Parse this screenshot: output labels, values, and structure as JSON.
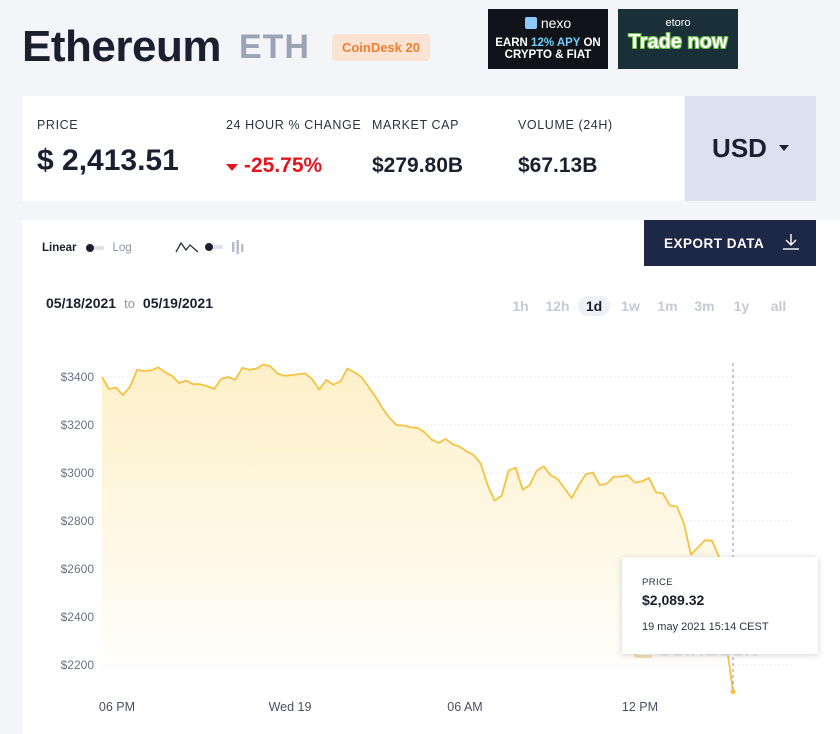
{
  "header": {
    "name": "Ethereum",
    "symbol": "ETH",
    "badge": "CoinDesk 20"
  },
  "ads": {
    "nexo": {
      "brand": "nexo",
      "line1_pre": "EARN ",
      "line1_hl": "12% APY",
      "line1_post": " ON",
      "line2": "CRYPTO & FIAT"
    },
    "etoro": {
      "brand": "etoro",
      "cta": "Trade now"
    }
  },
  "stats": {
    "price_label": "PRICE",
    "price_value": "$ 2,413.51",
    "change_label": "24 HOUR % CHANGE",
    "change_value": "-25.75%",
    "mcap_label": "MARKET CAP",
    "mcap_value": "$279.80B",
    "volume_label": "VOLUME (24H)",
    "volume_value": "$67.13B",
    "currency": "USD"
  },
  "controls": {
    "linear": "Linear",
    "log": "Log",
    "export": "EXPORT DATA",
    "date_from": "05/18/2021",
    "to": "to",
    "date_to": "05/19/2021",
    "periods": [
      "1h",
      "12h",
      "1d",
      "1w",
      "1m",
      "3m",
      "1y",
      "all"
    ],
    "active_period": "1d"
  },
  "tooltip": {
    "label": "PRICE",
    "value": "$2,089.32",
    "time": "19 may 2021 15:14 CEST"
  },
  "watermark": "coindesk",
  "colors": {
    "line": "#f5c242",
    "fill_top": "#fdf0c8",
    "accent_red": "#e1161f",
    "navy": "#1d2746"
  },
  "chart_data": {
    "type": "area",
    "y_ticks": [
      "$3400",
      "$3200",
      "$3000",
      "$2800",
      "$2600",
      "$2400",
      "$2200"
    ],
    "y_tick_values": [
      3400,
      3200,
      3000,
      2800,
      2600,
      2400,
      2200
    ],
    "x_ticks": [
      "06 PM",
      "Wed 19",
      "06 AM",
      "12 PM"
    ],
    "ylim": [
      2100,
      3500
    ],
    "grid": true,
    "series": [
      {
        "values": [
          3400,
          3350,
          3355,
          3325,
          3360,
          3430,
          3425,
          3428,
          3440,
          3420,
          3405,
          3375,
          3385,
          3370,
          3370,
          3362,
          3350,
          3392,
          3400,
          3388,
          3438,
          3430,
          3435,
          3452,
          3445,
          3415,
          3405,
          3408,
          3412,
          3415,
          3390,
          3348,
          3388,
          3368,
          3382,
          3435,
          3420,
          3400,
          3360,
          3318,
          3270,
          3230,
          3200,
          3198,
          3190,
          3188,
          3170,
          3140,
          3125,
          3142,
          3120,
          3110,
          3090,
          3075,
          3040,
          2950,
          2885,
          2905,
          3010,
          3022,
          2930,
          2950,
          3010,
          3028,
          2990,
          2975,
          2935,
          2895,
          2950,
          2995,
          3002,
          2950,
          2955,
          2985,
          2985,
          2990,
          2960,
          2965,
          2980,
          2920,
          2915,
          2865,
          2860,
          2790,
          2660,
          2690,
          2720,
          2718,
          2650,
          2300,
          2089
        ]
      }
    ]
  }
}
